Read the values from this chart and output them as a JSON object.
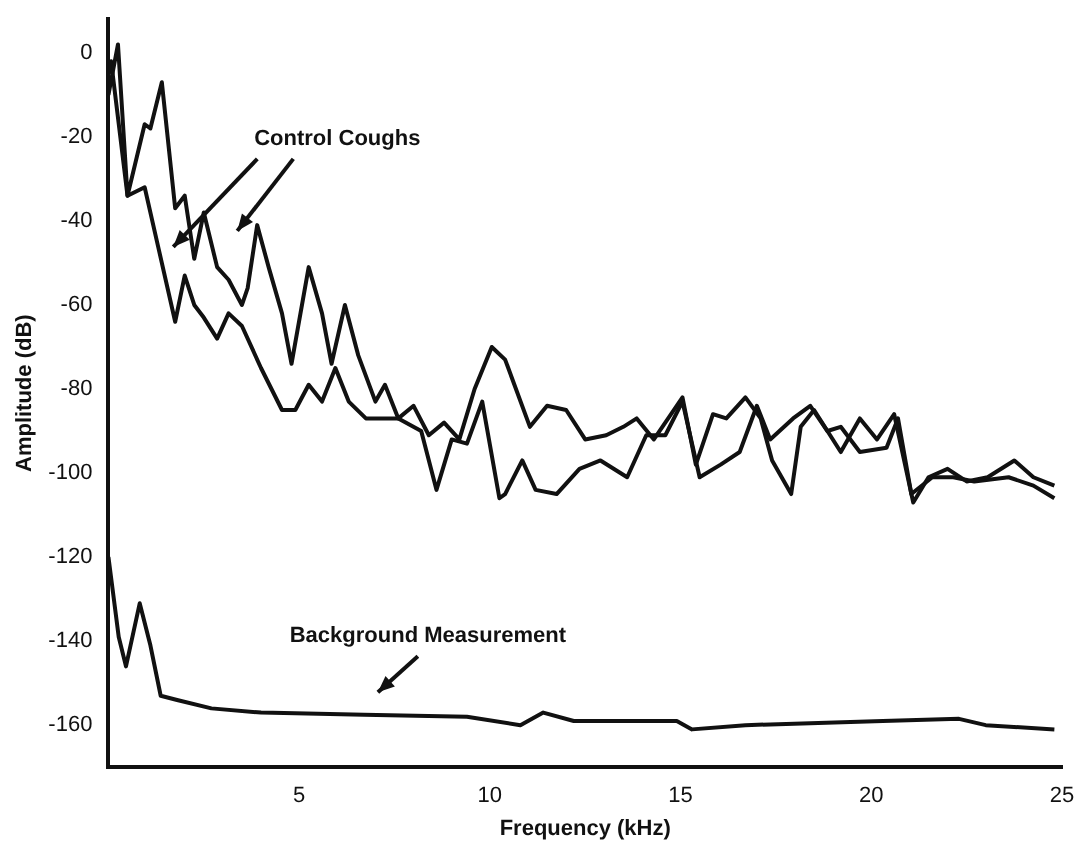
{
  "chart_data": {
    "type": "line",
    "xlabel": "Frequency (kHz)",
    "ylabel": "Amplitude (dB)",
    "xlim": [
      0,
      25
    ],
    "ylim": [
      -170,
      8
    ],
    "xticks": [
      5,
      10,
      15,
      20,
      25
    ],
    "yticks": [
      0,
      -20,
      -40,
      -60,
      -80,
      -100,
      -120,
      -140,
      -160
    ],
    "grid": false,
    "legend": false,
    "marker": "none",
    "line_style": "solid",
    "annotations": [
      "Control Coughs",
      "Background Measurement"
    ],
    "series": [
      {
        "color": "#111111",
        "x": [
          0,
          0.25,
          0.5,
          0.95,
          1.1,
          1.4,
          1.75,
          2.0,
          2.25,
          2.5,
          2.85,
          3.15,
          3.5,
          3.65,
          3.9,
          4.2,
          4.55,
          4.8,
          5.25,
          5.6,
          5.85,
          6.2,
          6.55,
          7.0,
          7.25,
          7.6,
          8.0,
          8.4,
          8.8,
          9.2,
          9.6,
          10.05,
          10.4,
          11.05,
          11.5,
          12.0,
          12.5,
          13.05,
          13.5,
          13.85,
          14.3,
          15.05,
          15.4,
          15.85,
          16.2,
          16.7,
          17.1,
          17.4,
          17.9,
          18.15,
          18.5,
          18.85,
          19.2,
          19.7,
          20.15,
          20.6,
          21.1,
          21.5,
          22.0,
          22.5,
          23.05,
          23.75,
          24.25,
          24.8
        ],
        "values": [
          -10,
          2,
          -34,
          -17,
          -18,
          -7,
          -37,
          -34,
          -49,
          -38,
          -51,
          -54,
          -60,
          -56,
          -41,
          -51,
          -62,
          -74,
          -51,
          -62,
          -74,
          -60,
          -72,
          -83,
          -79,
          -87,
          -84,
          -91,
          -88,
          -92,
          -80,
          -70,
          -73,
          -89,
          -84,
          -85,
          -92,
          -91,
          -89,
          -87,
          -92,
          -82,
          -98,
          -86,
          -87,
          -82,
          -87,
          -97,
          -105,
          -89,
          -85,
          -90,
          -95,
          -87,
          -92,
          -86,
          -107,
          -101,
          -99,
          -102,
          -101,
          -97,
          -101,
          -103
        ]
      },
      {
        "color": "#111111",
        "x": [
          0,
          0.07,
          0.5,
          0.95,
          1.3,
          1.75,
          2.0,
          2.25,
          2.5,
          2.85,
          3.15,
          3.5,
          4.0,
          4.55,
          4.9,
          5.25,
          5.6,
          5.95,
          6.3,
          6.75,
          7.2,
          7.6,
          8.2,
          8.6,
          9.0,
          9.4,
          9.8,
          10.25,
          10.4,
          10.85,
          11.2,
          11.75,
          12.35,
          12.9,
          13.6,
          14.1,
          14.6,
          15.05,
          15.5,
          16.05,
          16.55,
          17.0,
          17.35,
          17.95,
          18.4,
          18.85,
          19.2,
          19.7,
          20.4,
          20.7,
          21.05,
          21.6,
          22.15,
          22.7,
          23.6,
          24.25,
          24.8
        ],
        "values": [
          -5,
          -2,
          -34,
          -32,
          -46,
          -64,
          -53,
          -60,
          -63,
          -68,
          -62,
          -65,
          -75,
          -85,
          -85,
          -79,
          -83,
          -75,
          -83,
          -87,
          -87,
          -87,
          -90,
          -104,
          -92,
          -93,
          -83,
          -106,
          -105,
          -97,
          -104,
          -105,
          -99,
          -97,
          -101,
          -91,
          -91,
          -83,
          -101,
          -98,
          -95,
          -84,
          -92,
          -87,
          -84,
          -90,
          -89,
          -95,
          -94,
          -87,
          -105,
          -101,
          -101,
          -102,
          -101,
          -103,
          -106
        ]
      },
      {
        "color": "#111111",
        "x": [
          0,
          0.27,
          0.46,
          0.82,
          1.1,
          1.37,
          1.8,
          2.7,
          4,
          6.7,
          9.4,
          10.8,
          11.4,
          12.2,
          14.9,
          15.3,
          16.7,
          20.3,
          22.3,
          23,
          24.8
        ],
        "values": [
          -120,
          -139,
          -146,
          -131,
          -141,
          -153,
          -154,
          -156,
          -157,
          -157.5,
          -158,
          -160,
          -157,
          -159,
          -159,
          -161,
          -160,
          -159,
          -158.5,
          -160,
          -161
        ]
      }
    ]
  }
}
